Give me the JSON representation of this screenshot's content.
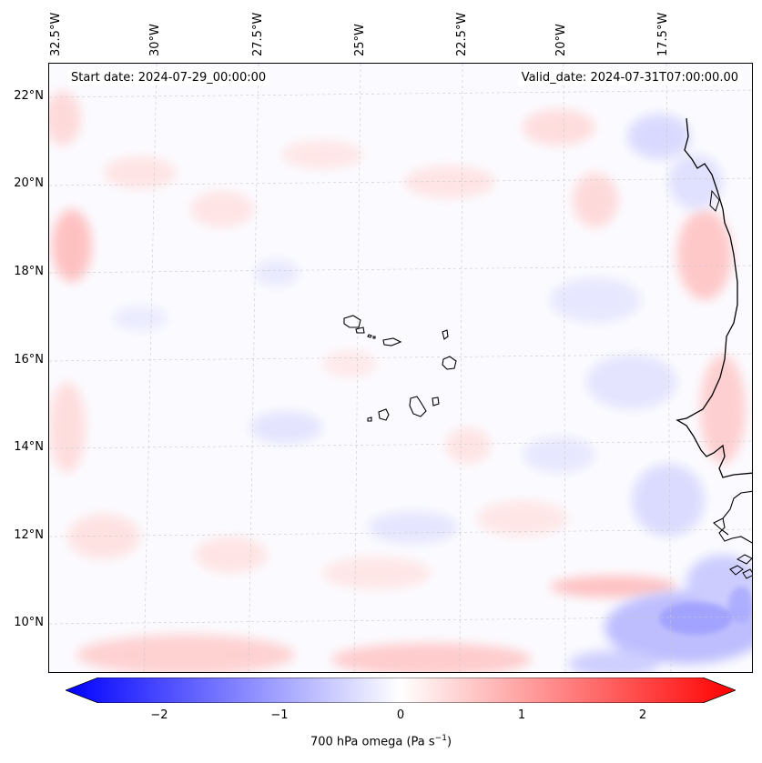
{
  "header": {
    "start_date": "Start date: 2024-07-29_00:00:00",
    "valid_date": "Valid_date: 2024-07-31T07:00:00.00"
  },
  "map": {
    "lon_labels": [
      "32.5°W",
      "30°W",
      "27.5°W",
      "25°W",
      "22.5°W",
      "20°W",
      "17.5°W"
    ],
    "lat_labels": [
      "22°N",
      "20°N",
      "18°N",
      "16°N",
      "14°N",
      "12°N",
      "10°N"
    ],
    "lon_range": [
      -32.5,
      -15.5
    ],
    "lat_range": [
      8.9,
      22.8
    ],
    "variable_colors": {
      "negative": "#0000ff",
      "zero": "#ffffff",
      "positive": "#ff0000"
    }
  },
  "colorbar": {
    "ticks": [
      "−2",
      "−1",
      "0",
      "1",
      "2"
    ],
    "tick_values": [
      -2,
      -1,
      0,
      1,
      2
    ],
    "range": [
      -2.5,
      2.5
    ],
    "label_main": "700 hPa omega (Pa s",
    "label_sup": "−1",
    "label_end": ")"
  }
}
